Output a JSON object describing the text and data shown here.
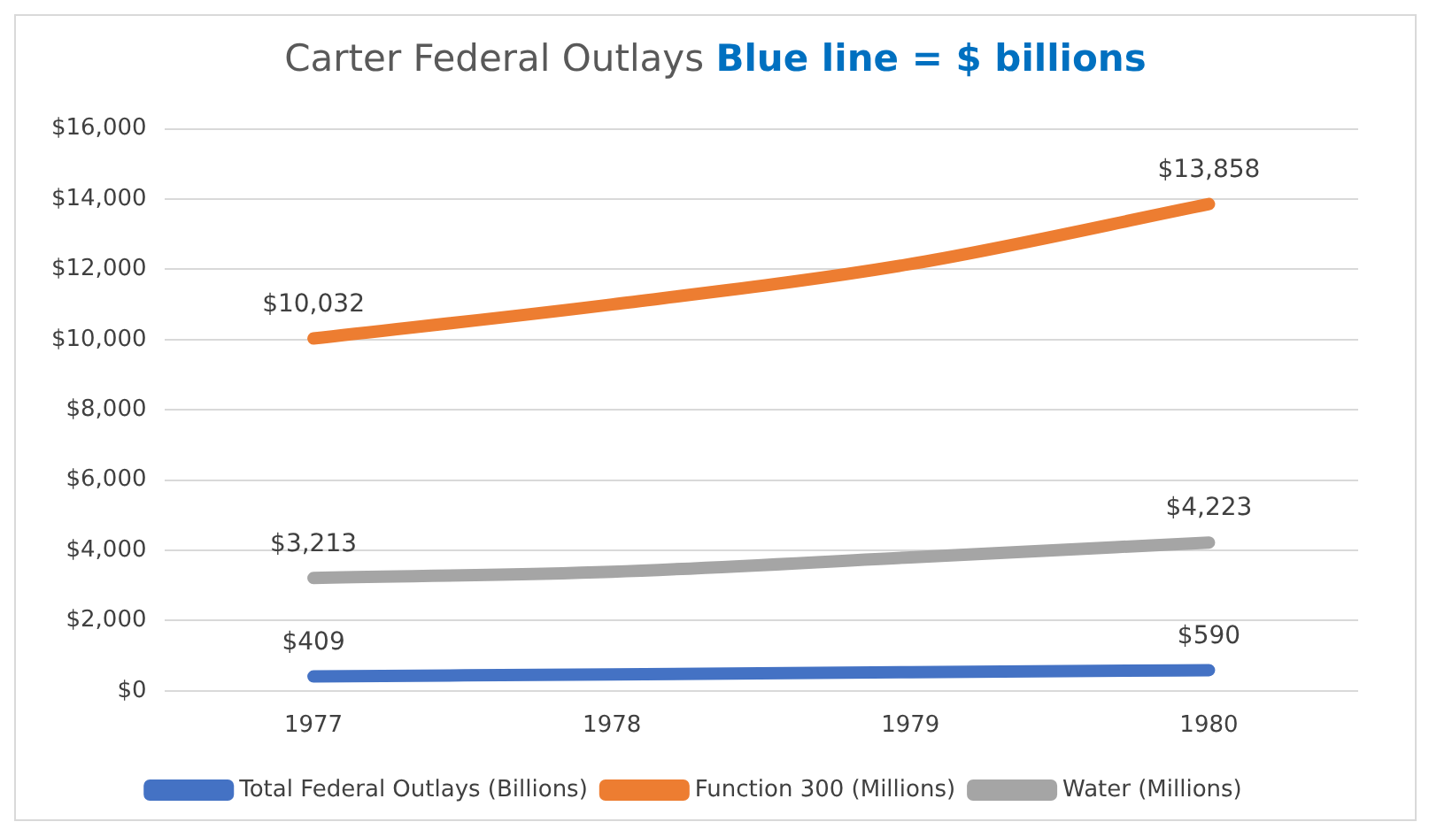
{
  "chart_data": {
    "type": "line",
    "title": "Carter Federal Outlays",
    "subtitle": "Blue line = $ billions",
    "categories": [
      "1977",
      "1978",
      "1979",
      "1980"
    ],
    "ylim": [
      0,
      16000
    ],
    "yticks": [
      {
        "value": 0,
        "label": "$0"
      },
      {
        "value": 2000,
        "label": "$2,000"
      },
      {
        "value": 4000,
        "label": "$4,000"
      },
      {
        "value": 6000,
        "label": "$6,000"
      },
      {
        "value": 8000,
        "label": "$8,000"
      },
      {
        "value": 10000,
        "label": "$10,000"
      },
      {
        "value": 12000,
        "label": "$12,000"
      },
      {
        "value": 14000,
        "label": "$14,000"
      },
      {
        "value": 16000,
        "label": "$16,000"
      }
    ],
    "grid": "y",
    "legend": "bottom",
    "marker": "none",
    "line_style": "solid",
    "series": [
      {
        "name": "Total Federal Outlays (Billions)",
        "color": "#4472c4",
        "values": [
          409,
          470,
          530,
          590
        ],
        "value_labels": [
          "$409",
          null,
          null,
          "$590"
        ]
      },
      {
        "name": "Function 300 (Millions)",
        "color": "#ed7d31",
        "values": [
          10032,
          11000,
          12150,
          13858
        ],
        "value_labels": [
          "$10,032",
          null,
          null,
          "$13,858"
        ]
      },
      {
        "name": "Water (Millions)",
        "color": "#a5a5a5",
        "values": [
          3213,
          3390,
          3800,
          4223
        ],
        "value_labels": [
          "$3,213",
          null,
          null,
          "$4,223"
        ]
      }
    ]
  }
}
